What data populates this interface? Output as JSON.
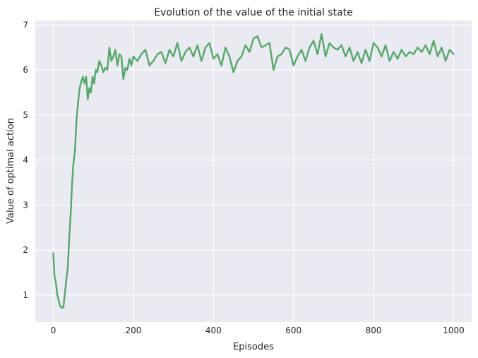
{
  "chart_data": {
    "type": "line",
    "title": "Evolution of the value of the initial state",
    "xlabel": "Episodes",
    "ylabel": "Value of optimal action",
    "xlim": [
      -45,
      1045
    ],
    "ylim": [
      0.4,
      7.1
    ],
    "xticks": [
      0,
      200,
      400,
      600,
      800,
      1000
    ],
    "yticks": [
      1,
      2,
      3,
      4,
      5,
      6,
      7
    ],
    "grid": true,
    "background": "#eaeaf2",
    "series": [
      {
        "name": "value",
        "color": "#55a868",
        "x": [
          0,
          3,
          6,
          10,
          13,
          16,
          20,
          25,
          28,
          32,
          36,
          40,
          44,
          47,
          50,
          54,
          58,
          62,
          66,
          70,
          74,
          78,
          82,
          86,
          90,
          94,
          98,
          102,
          106,
          110,
          115,
          120,
          125,
          130,
          135,
          140,
          145,
          150,
          155,
          160,
          165,
          170,
          175,
          180,
          185,
          190,
          195,
          200,
          210,
          220,
          230,
          240,
          250,
          260,
          270,
          280,
          290,
          300,
          310,
          320,
          330,
          340,
          350,
          360,
          370,
          380,
          390,
          400,
          410,
          420,
          430,
          440,
          450,
          460,
          470,
          480,
          490,
          500,
          510,
          520,
          530,
          540,
          550,
          560,
          570,
          580,
          590,
          600,
          610,
          620,
          630,
          640,
          650,
          660,
          670,
          680,
          690,
          700,
          710,
          720,
          730,
          740,
          750,
          760,
          770,
          780,
          790,
          800,
          810,
          820,
          830,
          840,
          850,
          860,
          870,
          880,
          890,
          900,
          910,
          920,
          930,
          940,
          950,
          960,
          970,
          980,
          990,
          1000
        ],
        "y": [
          1.93,
          1.4,
          1.3,
          1.0,
          0.9,
          0.78,
          0.72,
          0.72,
          0.95,
          1.3,
          1.6,
          2.3,
          2.9,
          3.5,
          3.9,
          4.2,
          4.9,
          5.3,
          5.6,
          5.75,
          5.85,
          5.7,
          5.85,
          5.35,
          5.6,
          5.5,
          5.85,
          5.7,
          6.0,
          5.95,
          6.2,
          6.1,
          5.95,
          6.05,
          6.0,
          6.5,
          6.2,
          6.3,
          6.45,
          6.1,
          6.35,
          6.3,
          5.8,
          6.05,
          6.0,
          6.25,
          6.1,
          6.3,
          6.2,
          6.35,
          6.45,
          6.1,
          6.2,
          6.35,
          6.4,
          6.15,
          6.45,
          6.3,
          6.6,
          6.2,
          6.4,
          6.5,
          6.3,
          6.55,
          6.2,
          6.5,
          6.6,
          6.25,
          6.35,
          6.1,
          6.5,
          6.3,
          5.95,
          6.2,
          6.3,
          6.55,
          6.4,
          6.7,
          6.75,
          6.5,
          6.55,
          6.6,
          6.0,
          6.3,
          6.35,
          6.5,
          6.45,
          6.1,
          6.3,
          6.45,
          6.2,
          6.5,
          6.65,
          6.35,
          6.8,
          6.3,
          6.6,
          6.5,
          6.45,
          6.55,
          6.3,
          6.5,
          6.2,
          6.4,
          6.15,
          6.45,
          6.2,
          6.6,
          6.5,
          6.3,
          6.55,
          6.2,
          6.4,
          6.25,
          6.45,
          6.3,
          6.4,
          6.35,
          6.5,
          6.4,
          6.55,
          6.35,
          6.65,
          6.3,
          6.5,
          6.2,
          6.45,
          6.35
        ]
      }
    ]
  }
}
